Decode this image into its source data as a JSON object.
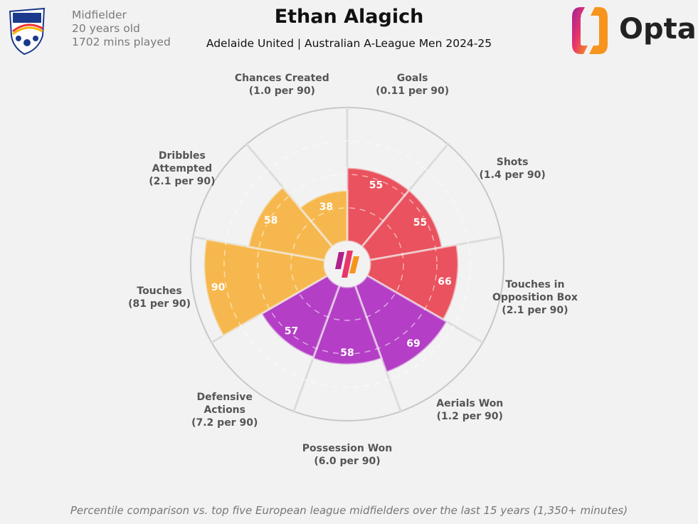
{
  "player": {
    "name": "Ethan Alagich",
    "position": "Midfielder",
    "age": "20 years old",
    "minutes": "1702 mins played"
  },
  "subtitle": "Adelaide United | Australian A-League Men 2024-25",
  "brand": {
    "name": "Opta"
  },
  "club_logo": {
    "text": "ADELAIDE UNITED F.C."
  },
  "footer": "Percentile comparison vs. top five European league midfielders over the last 15 years (1,350+ minutes)",
  "chart_data": {
    "type": "pie",
    "subtype": "pizza-percentile",
    "range": [
      0,
      100
    ],
    "gridlines": [
      25,
      50,
      75,
      100
    ],
    "categories": [
      {
        "name": "Goals",
        "lines": [
          "Goals",
          "(0.11 per 90)"
        ],
        "value": 55,
        "color": "#e9525e"
      },
      {
        "name": "Shots",
        "lines": [
          "Shots",
          "(1.4 per 90)"
        ],
        "value": 55,
        "color": "#e9525e"
      },
      {
        "name": "Touches in Opposition Box",
        "lines": [
          "Touches in",
          "Opposition Box",
          "(2.1 per 90)"
        ],
        "value": 66,
        "color": "#e9525e"
      },
      {
        "name": "Aerials Won",
        "lines": [
          "Aerials Won",
          "(1.2 per 90)"
        ],
        "value": 69,
        "color": "#b43fc6"
      },
      {
        "name": "Possession Won",
        "lines": [
          "Possession Won",
          "(6.0 per 90)"
        ],
        "value": 58,
        "color": "#b43fc6"
      },
      {
        "name": "Defensive Actions",
        "lines": [
          "Defensive",
          "Actions",
          "(7.2 per 90)"
        ],
        "value": 57,
        "color": "#b43fc6"
      },
      {
        "name": "Touches",
        "lines": [
          "Touches",
          "(81 per 90)"
        ],
        "value": 90,
        "color": "#f6b84e"
      },
      {
        "name": "Dribbles Attempted",
        "lines": [
          "Dribbles",
          "Attempted",
          "(2.1 per 90)"
        ],
        "value": 58,
        "color": "#f6b84e"
      },
      {
        "name": "Chances Created",
        "lines": [
          "Chances Created",
          "(1.0 per 90)"
        ],
        "value": 38,
        "color": "#f6b84e"
      }
    ]
  }
}
